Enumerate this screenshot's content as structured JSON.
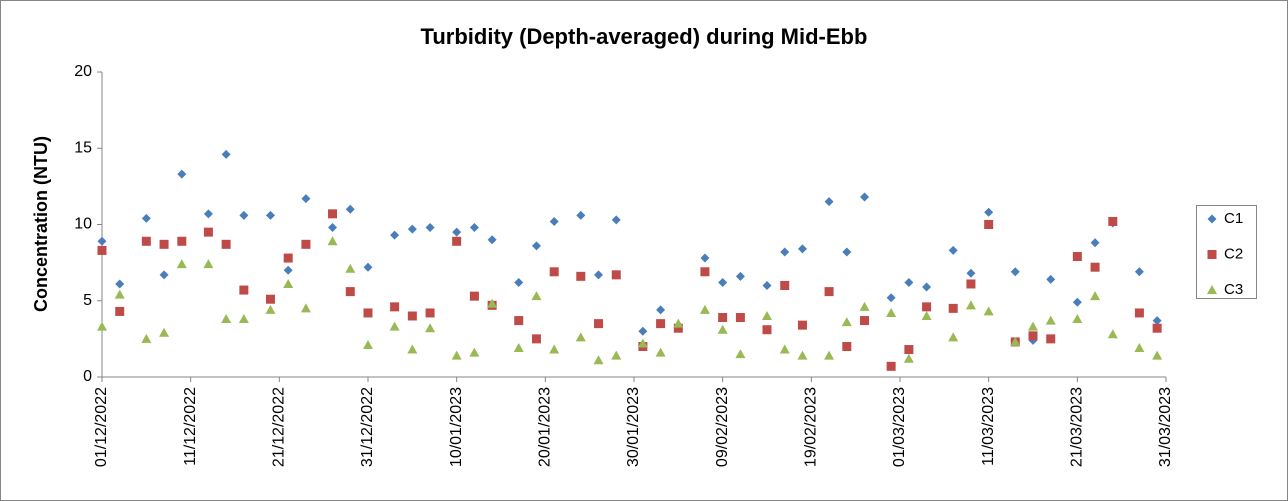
{
  "chart_data": {
    "type": "scatter",
    "title": "Turbidity (Depth-averaged) during Mid-Ebb",
    "y_label": "Concentration (NTU)",
    "x": [
      "01/12/2022",
      "03/12/2022",
      "06/12/2022",
      "08/12/2022",
      "10/12/2022",
      "13/12/2022",
      "15/12/2022",
      "17/12/2022",
      "20/12/2022",
      "22/12/2022",
      "24/12/2022",
      "27/12/2022",
      "29/12/2022",
      "31/12/2022",
      "03/01/2023",
      "05/01/2023",
      "07/01/2023",
      "10/01/2023",
      "12/01/2023",
      "14/01/2023",
      "17/01/2023",
      "19/01/2023",
      "21/01/2023",
      "24/01/2023",
      "26/01/2023",
      "28/01/2023",
      "31/01/2023",
      "02/02/2023",
      "04/02/2023",
      "07/02/2023",
      "09/02/2023",
      "11/02/2023",
      "14/02/2023",
      "16/02/2023",
      "18/02/2023",
      "21/02/2023",
      "23/02/2023",
      "25/02/2023",
      "28/02/2023",
      "02/03/2023",
      "04/03/2023",
      "07/03/2023",
      "09/03/2023",
      "11/03/2023",
      "14/03/2023",
      "16/03/2023",
      "18/03/2023",
      "21/03/2023",
      "23/03/2023",
      "25/03/2023",
      "28/03/2023",
      "30/03/2023"
    ],
    "series": [
      {
        "name": "C1",
        "color": "#4a7ebb",
        "marker": "diamond",
        "values": [
          8.9,
          6.1,
          10.4,
          6.7,
          13.3,
          10.7,
          14.6,
          10.6,
          10.6,
          7.0,
          11.7,
          9.8,
          11.0,
          7.2,
          9.3,
          9.7,
          9.8,
          9.5,
          9.8,
          9.0,
          6.2,
          8.6,
          10.2,
          10.6,
          6.7,
          10.3,
          3.0,
          4.4,
          null,
          7.8,
          6.2,
          6.6,
          6.0,
          8.2,
          8.4,
          11.5,
          8.2,
          11.8,
          5.2,
          6.2,
          5.9,
          8.3,
          6.8,
          10.8,
          6.9,
          2.4,
          6.4,
          4.9,
          8.8,
          10.1,
          6.9,
          3.7
        ]
      },
      {
        "name": "C2",
        "color": "#be4b48",
        "marker": "square",
        "values": [
          8.3,
          4.3,
          8.9,
          8.7,
          8.9,
          9.5,
          8.7,
          5.7,
          5.1,
          7.8,
          8.7,
          10.7,
          5.6,
          4.2,
          4.6,
          4.0,
          4.2,
          8.9,
          5.3,
          4.7,
          3.7,
          2.5,
          6.9,
          6.6,
          3.5,
          6.7,
          2.0,
          3.5,
          3.2,
          6.9,
          3.9,
          3.9,
          3.1,
          6.0,
          3.4,
          5.6,
          2.0,
          3.7,
          0.7,
          1.8,
          4.6,
          4.5,
          6.1,
          10.0,
          2.3,
          2.7,
          2.5,
          7.9,
          7.2,
          10.2,
          4.2,
          3.2
        ]
      },
      {
        "name": "C3",
        "color": "#98b954",
        "marker": "triangle",
        "values": [
          3.3,
          5.4,
          2.5,
          2.9,
          7.4,
          7.4,
          3.8,
          3.8,
          4.4,
          6.1,
          4.5,
          8.9,
          7.1,
          2.1,
          3.3,
          1.8,
          3.2,
          1.4,
          1.6,
          4.8,
          1.9,
          5.3,
          1.8,
          2.6,
          1.1,
          1.4,
          2.2,
          1.6,
          3.5,
          4.4,
          3.1,
          1.5,
          4.0,
          1.8,
          1.4,
          1.4,
          3.6,
          4.6,
          4.2,
          1.2,
          4.0,
          2.6,
          4.7,
          4.3,
          2.3,
          3.3,
          3.7,
          3.8,
          5.3,
          2.8,
          1.9,
          1.4
        ]
      }
    ],
    "xlim": [
      "01/12/2022",
      "31/03/2023"
    ],
    "xticks": [
      "01/12/2022",
      "11/12/2022",
      "21/12/2022",
      "31/12/2022",
      "10/01/2023",
      "20/01/2023",
      "30/01/2023",
      "09/02/2023",
      "19/02/2023",
      "01/03/2023",
      "11/03/2023",
      "21/03/2023",
      "31/03/2023"
    ],
    "ylim": [
      0,
      20
    ],
    "yticks": [
      0,
      5,
      10,
      15,
      20
    ],
    "grid": false,
    "legend": "right"
  }
}
